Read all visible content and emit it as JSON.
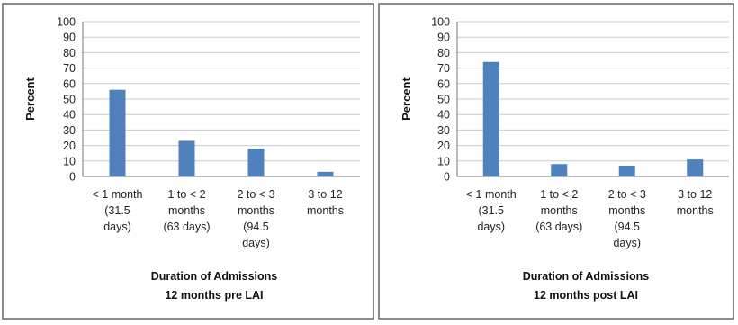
{
  "chart_data": [
    {
      "type": "bar",
      "categories": [
        "< 1 month (31.5 days)",
        "1 to < 2 months (63 days)",
        "2 to < 3 months (94.5 days)",
        "3 to 12 months"
      ],
      "category_lines": [
        [
          "< 1 month",
          "(31.5",
          "days)"
        ],
        [
          "1 to < 2",
          "months",
          "(63 days)"
        ],
        [
          "2 to < 3",
          "months",
          "(94.5",
          "days)"
        ],
        [
          "3 to 12",
          "months"
        ]
      ],
      "values": [
        56,
        23,
        18,
        3
      ],
      "ylabel": "Percent",
      "xlabel": "Duration of Admissions",
      "xlabel_sub": "12 months pre LAI",
      "ylim": [
        0,
        100
      ],
      "yticks": [
        0,
        10,
        20,
        30,
        40,
        50,
        60,
        70,
        80,
        90,
        100
      ],
      "grid": true,
      "bar_color": "#4f81bd"
    },
    {
      "type": "bar",
      "categories": [
        "< 1 month (31.5 days)",
        "1 to < 2 months (63 days)",
        "2 to < 3 months (94.5 days)",
        "3 to 12 months"
      ],
      "category_lines": [
        [
          "< 1 month",
          "(31.5",
          "days)"
        ],
        [
          "1 to < 2",
          "months",
          "(63 days)"
        ],
        [
          "2 to < 3",
          "months",
          "(94.5",
          "days)"
        ],
        [
          "3 to 12",
          "months"
        ]
      ],
      "values": [
        74,
        8,
        7,
        11
      ],
      "ylabel": "Percent",
      "xlabel": "Duration of Admissions",
      "xlabel_sub": "12 months post LAI",
      "ylim": [
        0,
        100
      ],
      "yticks": [
        0,
        10,
        20,
        30,
        40,
        50,
        60,
        70,
        80,
        90,
        100
      ],
      "grid": true,
      "bar_color": "#4f81bd"
    }
  ]
}
